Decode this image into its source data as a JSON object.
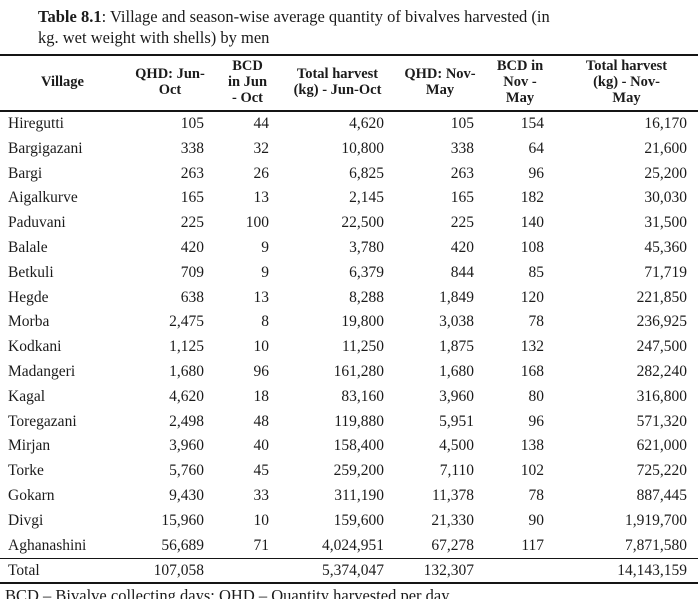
{
  "title": {
    "prefix": "Table 8.1",
    "rest": ": Village and season-wise average quantity of bivalves harvested (in\nkg. wet weight with shells) by men"
  },
  "table": {
    "columns": [
      "Village",
      "QHD: Jun-\nOct",
      "BCD\nin Jun\n- Oct",
      "Total harvest\n(kg) - Jun-Oct",
      "QHD: Nov-\nMay",
      "BCD in\nNov -\nMay",
      "Total harvest\n(kg) - Nov-\nMay"
    ],
    "rows": [
      [
        "Hiregutti",
        "105",
        "44",
        "4,620",
        "105",
        "154",
        "16,170"
      ],
      [
        "Bargigazani",
        "338",
        "32",
        "10,800",
        "338",
        "64",
        "21,600"
      ],
      [
        "Bargi",
        "263",
        "26",
        "6,825",
        "263",
        "96",
        "25,200"
      ],
      [
        "Aigalkurve",
        "165",
        "13",
        "2,145",
        "165",
        "182",
        "30,030"
      ],
      [
        "Paduvani",
        "225",
        "100",
        "22,500",
        "225",
        "140",
        "31,500"
      ],
      [
        "Balale",
        "420",
        "9",
        "3,780",
        "420",
        "108",
        "45,360"
      ],
      [
        "Betkuli",
        "709",
        "9",
        "6,379",
        "844",
        "85",
        "71,719"
      ],
      [
        "Hegde",
        "638",
        "13",
        "8,288",
        "1,849",
        "120",
        "221,850"
      ],
      [
        "Morba",
        "2,475",
        "8",
        "19,800",
        "3,038",
        "78",
        "236,925"
      ],
      [
        "Kodkani",
        "1,125",
        "10",
        "11,250",
        "1,875",
        "132",
        "247,500"
      ],
      [
        "Madangeri",
        "1,680",
        "96",
        "161,280",
        "1,680",
        "168",
        "282,240"
      ],
      [
        "Kagal",
        "4,620",
        "18",
        "83,160",
        "3,960",
        "80",
        "316,800"
      ],
      [
        "Toregazani",
        "2,498",
        "48",
        "119,880",
        "5,951",
        "96",
        "571,320"
      ],
      [
        "Mirjan",
        "3,960",
        "40",
        "158,400",
        "4,500",
        "138",
        "621,000"
      ],
      [
        "Torke",
        "5,760",
        "45",
        "259,200",
        "7,110",
        "102",
        "725,220"
      ],
      [
        "Gokarn",
        "9,430",
        "33",
        "311,190",
        "11,378",
        "78",
        "887,445"
      ],
      [
        "Divgi",
        "15,960",
        "10",
        "159,600",
        "21,330",
        "90",
        "1,919,700"
      ],
      [
        "Aghanashini",
        "56,689",
        "71",
        "4,024,951",
        "67,278",
        "117",
        "7,871,580"
      ]
    ],
    "total_row": [
      "Total",
      "107,058",
      "",
      "5,374,047",
      "132,307",
      "",
      "14,143,159"
    ]
  },
  "footnote": "BCD – Bivalve collecting days; QHD – Quantity harvested per day"
}
